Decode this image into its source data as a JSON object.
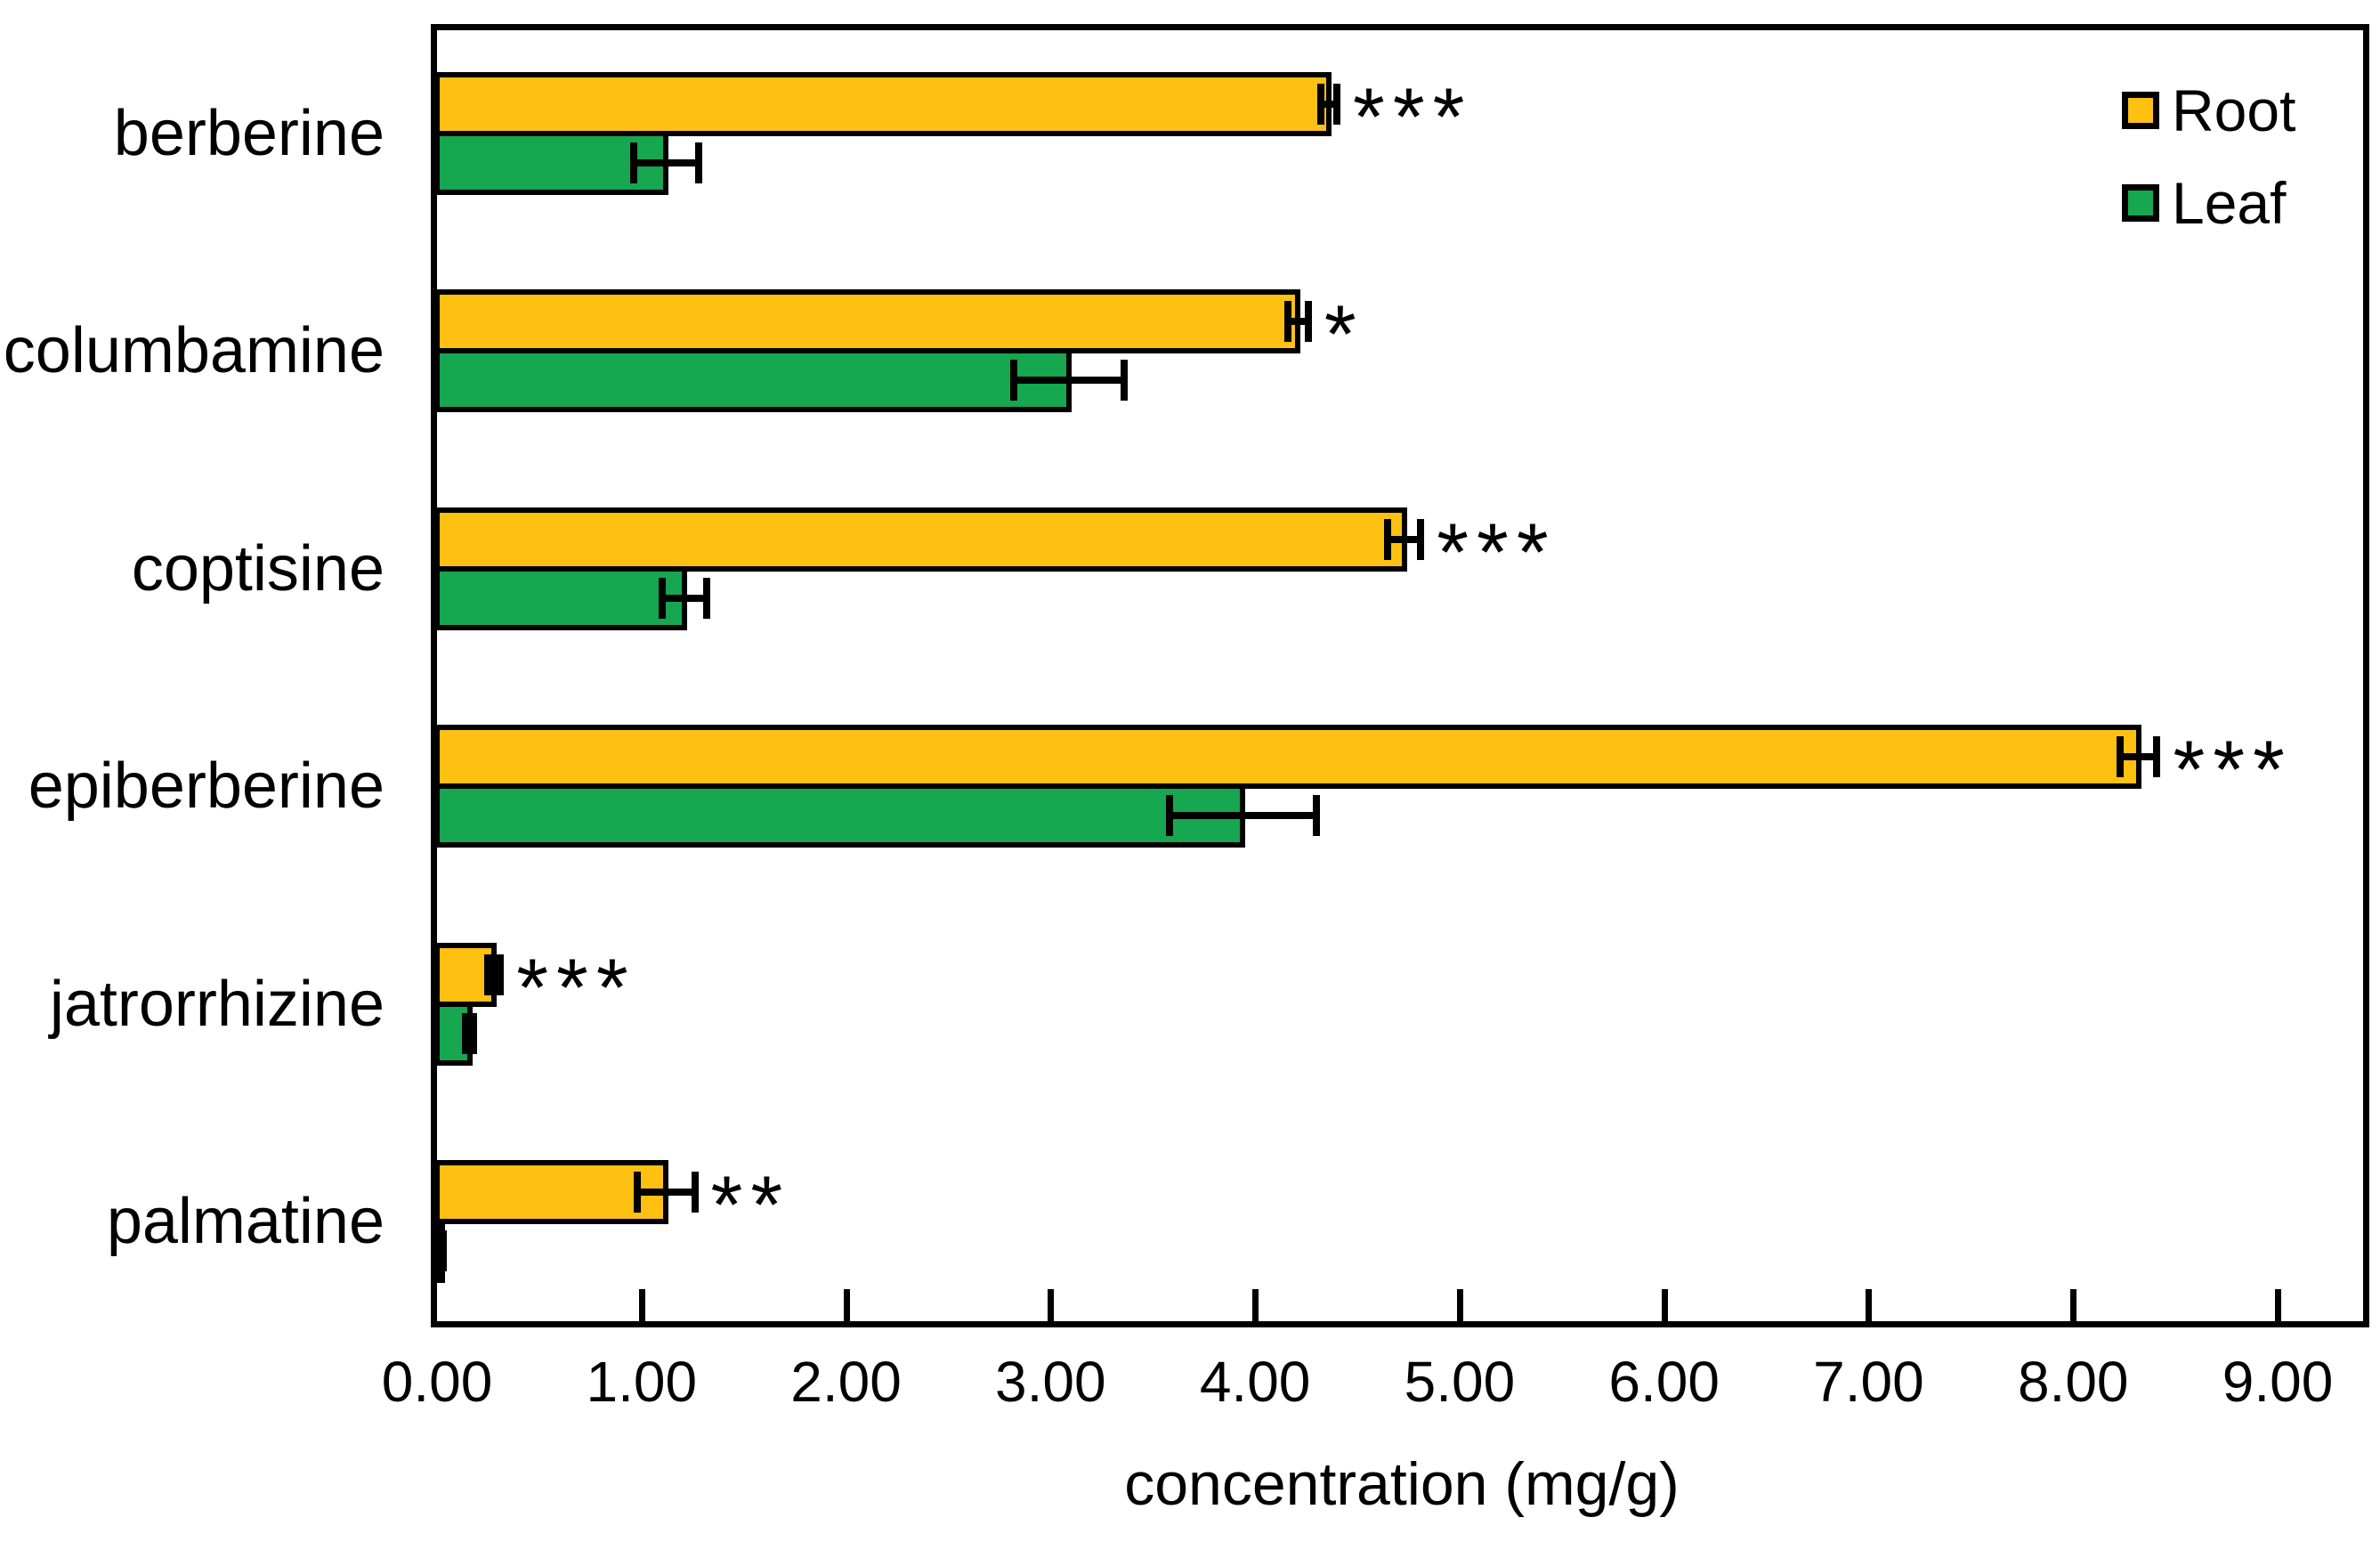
{
  "chart_data": {
    "type": "bar",
    "orientation": "horizontal",
    "title": "",
    "xlabel": "concentration (mg/g)",
    "ylabel": "",
    "categories": [
      "berberine",
      "columbamine",
      "coptisine",
      "epiberberine",
      "jatrorrhizine",
      "palmatine"
    ],
    "series": [
      {
        "name": "Root",
        "color": "#FEC011",
        "values": [
          4.36,
          4.21,
          4.73,
          8.32,
          0.28,
          1.12
        ],
        "errors": [
          0.04,
          0.05,
          0.08,
          0.09,
          0.03,
          0.14
        ]
      },
      {
        "name": "Leaf",
        "color": "#16A750",
        "values": [
          1.12,
          3.09,
          1.21,
          3.94,
          0.16,
          0.02
        ],
        "errors": [
          0.16,
          0.27,
          0.11,
          0.36,
          0.02,
          0.01
        ]
      }
    ],
    "significance": [
      "***",
      "*",
      "***",
      "***",
      "***",
      "**"
    ],
    "significance_applies_to": "Root",
    "xlim": [
      0,
      9.44
    ],
    "xtick_values": [
      0,
      1,
      2,
      3,
      4,
      5,
      6,
      7,
      8,
      9
    ],
    "xtick_labels": [
      "0.00",
      "1.00",
      "2.00",
      "3.00",
      "4.00",
      "5.00",
      "6.00",
      "7.00",
      "8.00",
      "9.00"
    ],
    "grid": false,
    "legend_position": "top-right",
    "error_bars": true,
    "bar_outline_color": "#000000",
    "background_color": "#ffffff"
  }
}
